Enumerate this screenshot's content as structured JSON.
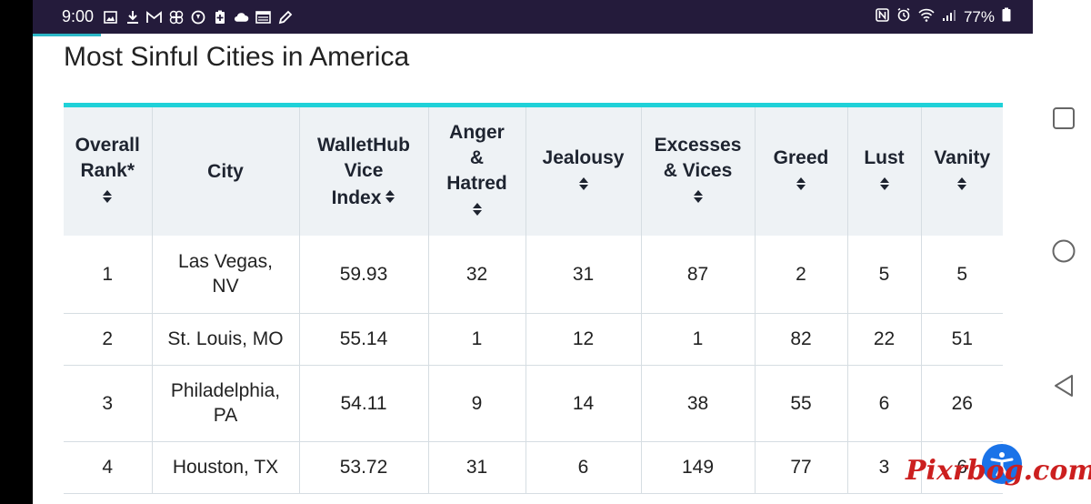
{
  "status_bar": {
    "time": "9:00",
    "battery_percent": "77%",
    "left_icons": [
      "gallery-icon",
      "download-icon",
      "gmail-icon",
      "pinwheel-icon",
      "app-icon",
      "battery-saver-icon",
      "cloud-icon",
      "news-icon",
      "pen-icon"
    ],
    "right_icons": [
      "nfc-icon",
      "alarm-icon",
      "wifi-icon",
      "signal-icon",
      "battery-icon"
    ]
  },
  "page": {
    "title": "Most Sinful Cities in America"
  },
  "table": {
    "headers": [
      {
        "label": "Overall Rank*",
        "lines": [
          "Overall",
          "Rank*"
        ],
        "sortable": true
      },
      {
        "label": "City",
        "lines": [
          "City"
        ],
        "sortable": false
      },
      {
        "label": "WalletHub Vice Index",
        "lines": [
          "WalletHub",
          "Vice",
          "Index"
        ],
        "sortable": true
      },
      {
        "label": "Anger & Hatred",
        "lines": [
          "Anger",
          "&",
          "Hatred"
        ],
        "sortable": true
      },
      {
        "label": "Jealousy",
        "lines": [
          "Jealousy"
        ],
        "sortable": true
      },
      {
        "label": "Excesses & Vices",
        "lines": [
          "Excesses",
          "& Vices"
        ],
        "sortable": true
      },
      {
        "label": "Greed",
        "lines": [
          "Greed"
        ],
        "sortable": true
      },
      {
        "label": "Lust",
        "lines": [
          "Lust"
        ],
        "sortable": true
      },
      {
        "label": "Vanity",
        "lines": [
          "Vanity"
        ],
        "sortable": true
      }
    ],
    "rows": [
      {
        "rank": "1",
        "city": [
          "Las Vegas,",
          "NV"
        ],
        "vice_index": "59.93",
        "anger_hatred": "32",
        "jealousy": "31",
        "excesses_vices": "87",
        "greed": "2",
        "lust": "5",
        "vanity": "5"
      },
      {
        "rank": "2",
        "city": [
          "St. Louis, MO"
        ],
        "vice_index": "55.14",
        "anger_hatred": "1",
        "jealousy": "12",
        "excesses_vices": "1",
        "greed": "82",
        "lust": "22",
        "vanity": "51"
      },
      {
        "rank": "3",
        "city": [
          "Philadelphia,",
          "PA"
        ],
        "vice_index": "54.11",
        "anger_hatred": "9",
        "jealousy": "14",
        "excesses_vices": "38",
        "greed": "55",
        "lust": "6",
        "vanity": "26"
      },
      {
        "rank": "4",
        "city": [
          "Houston, TX"
        ],
        "vice_index": "53.72",
        "anger_hatred": "31",
        "jealousy": "6",
        "excesses_vices": "149",
        "greed": "77",
        "lust": "3",
        "vanity": "6"
      }
    ]
  },
  "watermark": "Pixrbog.com",
  "nav_buttons": [
    "recents-icon",
    "home-icon",
    "back-icon"
  ],
  "colors": {
    "status_bar": "#241b3b",
    "accent_bar": "#1fd1d8",
    "header_bg": "#eef2f5",
    "accessibility_button": "#1a73e8",
    "watermark": "#cc1f1f"
  }
}
